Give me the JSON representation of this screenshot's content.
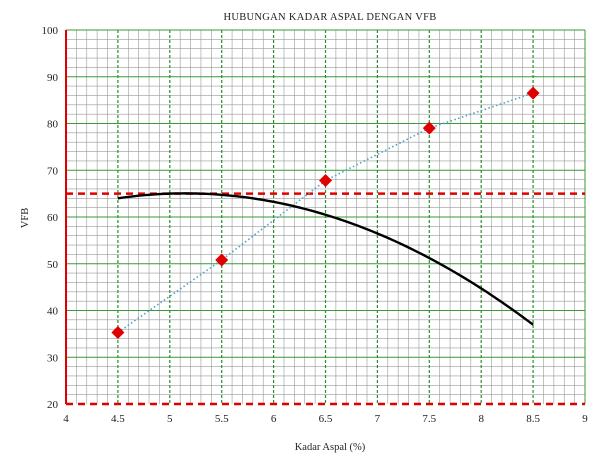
{
  "chart_data": {
    "type": "scatter",
    "title": "HUBUNGAN KADAR ASPAL DENGAN VFB",
    "xlabel": "Kadar Aspal (%)",
    "ylabel": "VFB",
    "xlim": [
      4,
      9
    ],
    "ylim": [
      20,
      100
    ],
    "x_ticks": [
      "4",
      "4.5",
      "5",
      "5.5",
      "6",
      "6.5",
      "7",
      "7.5",
      "8",
      "8.5",
      "9"
    ],
    "y_ticks": [
      "20",
      "30",
      "40",
      "50",
      "60",
      "70",
      "80",
      "90",
      "100"
    ],
    "grid": true,
    "series": [
      {
        "marker": "diamond",
        "color": "#e00000",
        "points": [
          {
            "x": 4.5,
            "y": 35.3
          },
          {
            "x": 5.5,
            "y": 50.8
          },
          {
            "x": 6.5,
            "y": 67.8
          },
          {
            "x": 7.5,
            "y": 79.0
          },
          {
            "x": 8.5,
            "y": 86.5
          }
        ]
      }
    ],
    "fitted_curve": {
      "type": "polynomial",
      "degree": 2,
      "color": "#000000",
      "x_range": [
        4.5,
        8.5
      ],
      "coefficients": [
        -2.5,
        25.74,
        -1.2
      ]
    },
    "connecting_line": {
      "style": "dotted",
      "color": "#4aa3c8"
    },
    "reference_lines": [
      {
        "y": 65,
        "style": "dashed",
        "color": "#e00000"
      },
      {
        "y": 20,
        "style": "dashed",
        "color": "#e00000"
      }
    ]
  }
}
